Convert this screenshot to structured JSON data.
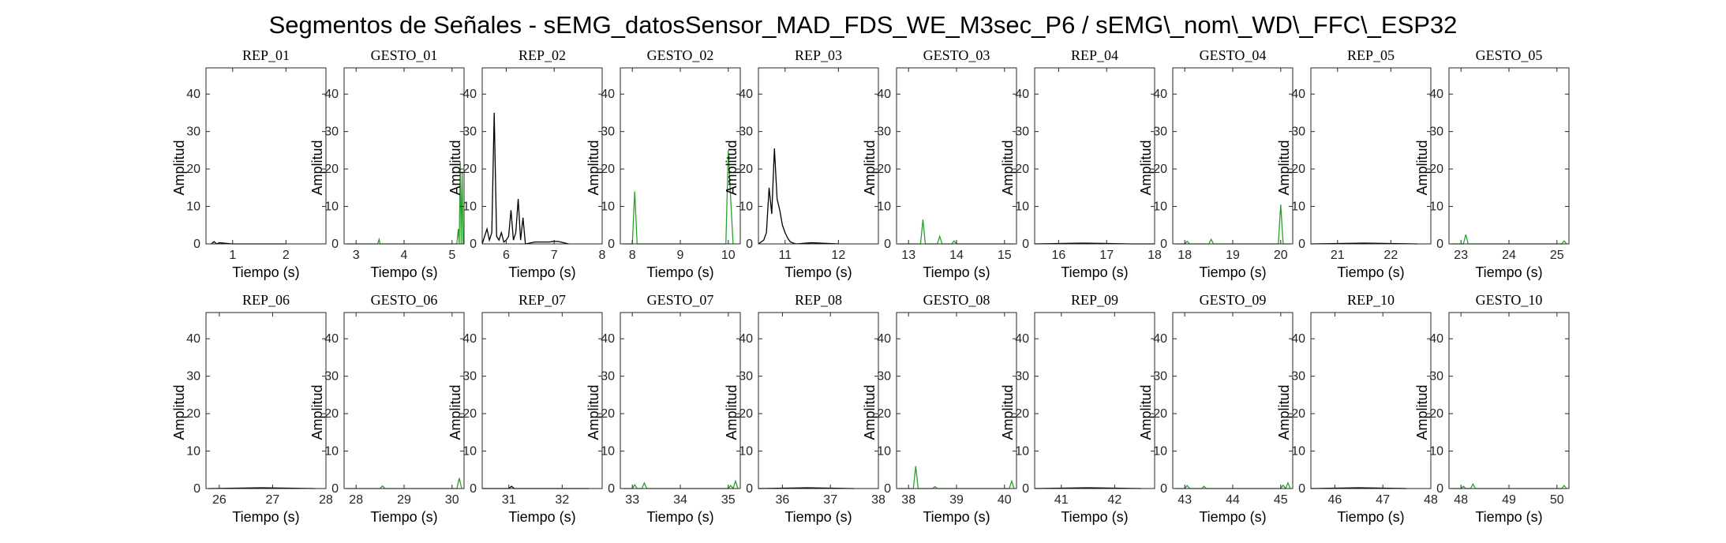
{
  "figure_title": "Segmentos de Señales - sEMG_datosSensor_MAD_FDS_WE_M3sec_P6 / sEMG\\_nom\\_WD\\_FFC\\_ESP32",
  "colors": {
    "rep": "#000000",
    "gesto": "#2ca02c",
    "axis": "#262626"
  },
  "chart_data": [
    {
      "type": "line",
      "title": "REP_01",
      "xlabel": "Tiempo (s)",
      "ylabel": "Amplitud",
      "xlim": [
        0.5,
        2.75
      ],
      "ylim": [
        0,
        47
      ],
      "xticks": [
        1,
        2
      ],
      "yticks": [
        0,
        10,
        20,
        30,
        40
      ],
      "color": "rep",
      "x": [
        0.6,
        0.65,
        0.7,
        0.75,
        1.0,
        2.0
      ],
      "y": [
        0,
        0.6,
        0,
        0.3,
        0,
        0
      ]
    },
    {
      "type": "line",
      "title": "GESTO_01",
      "xlabel": "Tiempo (s)",
      "ylabel": "Amplitud",
      "xlim": [
        2.75,
        5.25
      ],
      "ylim": [
        0,
        47
      ],
      "xticks": [
        3,
        4,
        5
      ],
      "yticks": [
        0,
        10,
        20,
        30,
        40
      ],
      "color": "gesto",
      "x": [
        2.8,
        3.45,
        3.48,
        3.5,
        4.2,
        5.1,
        5.13,
        5.15,
        5.17,
        5.19,
        5.21,
        5.23
      ],
      "y": [
        0,
        0,
        1.2,
        0,
        0,
        0,
        4,
        0,
        22,
        0,
        19,
        0
      ]
    },
    {
      "type": "line",
      "title": "REP_02",
      "xlabel": "Tiempo (s)",
      "ylabel": "Amplitud",
      "xlim": [
        5.5,
        8.0
      ],
      "ylim": [
        0,
        47
      ],
      "xticks": [
        6,
        7,
        8
      ],
      "yticks": [
        0,
        10,
        20,
        30,
        40
      ],
      "color": "rep",
      "x": [
        5.5,
        5.55,
        5.6,
        5.65,
        5.7,
        5.75,
        5.8,
        5.85,
        5.9,
        5.95,
        6.0,
        6.05,
        6.1,
        6.15,
        6.2,
        6.25,
        6.3,
        6.35,
        6.4,
        6.6,
        6.9,
        7.0,
        7.1,
        7.3
      ],
      "y": [
        0,
        2,
        4,
        1,
        3,
        35,
        2,
        1,
        3,
        0.5,
        1,
        2,
        9,
        1,
        3,
        12,
        1,
        7,
        0,
        0.5,
        0.5,
        0.7,
        0.6,
        0
      ]
    },
    {
      "type": "line",
      "title": "GESTO_02",
      "xlabel": "Tiempo (s)",
      "ylabel": "Amplitud",
      "xlim": [
        7.75,
        10.25
      ],
      "ylim": [
        0,
        47
      ],
      "xticks": [
        8,
        9,
        10
      ],
      "yticks": [
        0,
        10,
        20,
        30,
        40
      ],
      "color": "gesto",
      "x": [
        7.8,
        8.0,
        8.05,
        8.1,
        9.0,
        9.95,
        10.0,
        10.05,
        10.1
      ],
      "y": [
        0,
        0,
        14,
        0,
        0,
        0,
        25,
        12,
        0
      ]
    },
    {
      "type": "line",
      "title": "REP_03",
      "xlabel": "Tiempo (s)",
      "ylabel": "Amplitud",
      "xlim": [
        10.5,
        12.75
      ],
      "ylim": [
        0,
        47
      ],
      "xticks": [
        11,
        12
      ],
      "yticks": [
        0,
        10,
        20,
        30,
        40
      ],
      "color": "rep",
      "x": [
        10.5,
        10.55,
        10.6,
        10.65,
        10.7,
        10.75,
        10.8,
        10.85,
        10.9,
        10.95,
        11.0,
        11.05,
        11.1,
        11.2,
        11.5,
        12.0
      ],
      "y": [
        0,
        0.5,
        1,
        3,
        15,
        8,
        25.5,
        12,
        9,
        5,
        3,
        1.5,
        0.5,
        0,
        0.3,
        0
      ]
    },
    {
      "type": "line",
      "title": "GESTO_03",
      "xlabel": "Tiempo (s)",
      "ylabel": "Amplitud",
      "xlim": [
        12.75,
        15.25
      ],
      "ylim": [
        0,
        47
      ],
      "xticks": [
        13,
        14,
        15
      ],
      "yticks": [
        0,
        10,
        20,
        30,
        40
      ],
      "color": "gesto",
      "x": [
        12.8,
        13.25,
        13.3,
        13.35,
        13.6,
        13.65,
        13.7,
        13.9,
        13.95,
        14.0,
        15.2
      ],
      "y": [
        0,
        0,
        6.5,
        0,
        0,
        2,
        0,
        0,
        0.8,
        0,
        0
      ]
    },
    {
      "type": "line",
      "title": "REP_04",
      "xlabel": "Tiempo (s)",
      "ylabel": "Amplitud",
      "xlim": [
        15.5,
        18.0
      ],
      "ylim": [
        0,
        47
      ],
      "xticks": [
        16,
        17,
        18
      ],
      "yticks": [
        0,
        10,
        20,
        30,
        40
      ],
      "color": "rep",
      "x": [
        15.5,
        16.5,
        17.5,
        18.0
      ],
      "y": [
        0,
        0.2,
        0,
        0
      ]
    },
    {
      "type": "line",
      "title": "GESTO_04",
      "xlabel": "Tiempo (s)",
      "ylabel": "Amplitud",
      "xlim": [
        17.75,
        20.25
      ],
      "ylim": [
        0,
        47
      ],
      "xticks": [
        18,
        19,
        20
      ],
      "yticks": [
        0,
        10,
        20,
        30,
        40
      ],
      "color": "gesto",
      "x": [
        17.8,
        18.0,
        18.05,
        18.1,
        18.5,
        18.55,
        18.6,
        19.0,
        19.95,
        20.0,
        20.05,
        20.2
      ],
      "y": [
        0,
        0,
        0.7,
        0,
        0,
        1.2,
        0,
        0,
        0,
        10.5,
        0,
        0
      ]
    },
    {
      "type": "line",
      "title": "REP_05",
      "xlabel": "Tiempo (s)",
      "ylabel": "Amplitud",
      "xlim": [
        20.5,
        22.75
      ],
      "ylim": [
        0,
        47
      ],
      "xticks": [
        21,
        22
      ],
      "yticks": [
        0,
        10,
        20,
        30,
        40
      ],
      "color": "rep",
      "x": [
        20.5,
        21.5,
        22.5
      ],
      "y": [
        0,
        0.2,
        0
      ]
    },
    {
      "type": "line",
      "title": "GESTO_05",
      "xlabel": "Tiempo (s)",
      "ylabel": "Amplitud",
      "xlim": [
        22.75,
        25.25
      ],
      "ylim": [
        0,
        47
      ],
      "xticks": [
        23,
        24,
        25
      ],
      "yticks": [
        0,
        10,
        20,
        30,
        40
      ],
      "color": "gesto",
      "x": [
        22.8,
        23.05,
        23.1,
        23.15,
        24.0,
        25.1,
        25.15,
        25.2
      ],
      "y": [
        0,
        0,
        2.5,
        0,
        0,
        0,
        0.8,
        0
      ]
    },
    {
      "type": "line",
      "title": "REP_06",
      "xlabel": "Tiempo (s)",
      "ylabel": "Amplitud",
      "xlim": [
        25.75,
        28.0
      ],
      "ylim": [
        0,
        47
      ],
      "xticks": [
        26,
        27,
        28
      ],
      "yticks": [
        0,
        10,
        20,
        30,
        40
      ],
      "color": "rep",
      "x": [
        25.8,
        26.8,
        27.8
      ],
      "y": [
        0,
        0.2,
        0
      ]
    },
    {
      "type": "line",
      "title": "GESTO_06",
      "xlabel": "Tiempo (s)",
      "ylabel": "Amplitud",
      "xlim": [
        27.75,
        30.25
      ],
      "ylim": [
        0,
        47
      ],
      "xticks": [
        28,
        29,
        30
      ],
      "yticks": [
        0,
        10,
        20,
        30,
        40
      ],
      "color": "gesto",
      "x": [
        27.8,
        28.5,
        28.55,
        28.6,
        29.5,
        30.1,
        30.15,
        30.2
      ],
      "y": [
        0,
        0,
        0.7,
        0,
        0,
        0,
        2.8,
        0
      ]
    },
    {
      "type": "line",
      "title": "REP_07",
      "xlabel": "Tiempo (s)",
      "ylabel": "Amplitud",
      "xlim": [
        30.5,
        32.75
      ],
      "ylim": [
        0,
        47
      ],
      "xticks": [
        31,
        32
      ],
      "yticks": [
        0,
        10,
        20,
        30,
        40
      ],
      "color": "rep",
      "x": [
        30.5,
        31.0,
        31.05,
        31.1,
        32.5
      ],
      "y": [
        0,
        0,
        0.6,
        0,
        0
      ]
    },
    {
      "type": "line",
      "title": "GESTO_07",
      "xlabel": "Tiempo (s)",
      "ylabel": "Amplitud",
      "xlim": [
        32.75,
        35.25
      ],
      "ylim": [
        0,
        47
      ],
      "xticks": [
        33,
        34,
        35
      ],
      "yticks": [
        0,
        10,
        20,
        30,
        40
      ],
      "color": "gesto",
      "x": [
        32.8,
        33.0,
        33.05,
        33.1,
        33.2,
        33.25,
        33.3,
        35.0,
        35.05,
        35.1,
        35.15,
        35.2
      ],
      "y": [
        0,
        0,
        1,
        0,
        0,
        1.5,
        0,
        0,
        0.8,
        0,
        2,
        0
      ]
    },
    {
      "type": "line",
      "title": "REP_08",
      "xlabel": "Tiempo (s)",
      "ylabel": "Amplitud",
      "xlim": [
        35.5,
        38.0
      ],
      "ylim": [
        0,
        47
      ],
      "xticks": [
        36,
        37,
        38
      ],
      "yticks": [
        0,
        10,
        20,
        30,
        40
      ],
      "color": "rep",
      "x": [
        35.5,
        36.5,
        37.5
      ],
      "y": [
        0,
        0.2,
        0
      ]
    },
    {
      "type": "line",
      "title": "GESTO_08",
      "xlabel": "Tiempo (s)",
      "ylabel": "Amplitud",
      "xlim": [
        37.75,
        40.25
      ],
      "ylim": [
        0,
        47
      ],
      "xticks": [
        38,
        39,
        40
      ],
      "yticks": [
        0,
        10,
        20,
        30,
        40
      ],
      "color": "gesto",
      "x": [
        37.8,
        38.1,
        38.15,
        38.2,
        38.5,
        38.55,
        38.6,
        40.1,
        40.15,
        40.2
      ],
      "y": [
        0,
        0,
        6,
        0,
        0,
        0.5,
        0,
        0,
        2,
        0
      ]
    },
    {
      "type": "line",
      "title": "REP_09",
      "xlabel": "Tiempo (s)",
      "ylabel": "Amplitud",
      "xlim": [
        40.5,
        42.75
      ],
      "ylim": [
        0,
        47
      ],
      "xticks": [
        41,
        42
      ],
      "yticks": [
        0,
        10,
        20,
        30,
        40
      ],
      "color": "rep",
      "x": [
        40.5,
        41.5,
        42.5
      ],
      "y": [
        0,
        0.2,
        0
      ]
    },
    {
      "type": "line",
      "title": "GESTO_09",
      "xlabel": "Tiempo (s)",
      "ylabel": "Amplitud",
      "xlim": [
        42.75,
        45.25
      ],
      "ylim": [
        0,
        47
      ],
      "xticks": [
        43,
        44,
        45
      ],
      "yticks": [
        0,
        10,
        20,
        30,
        40
      ],
      "color": "gesto",
      "x": [
        42.8,
        43.0,
        43.05,
        43.1,
        43.35,
        43.4,
        43.45,
        45.0,
        45.05,
        45.1,
        45.15,
        45.2
      ],
      "y": [
        0,
        0,
        0.8,
        0,
        0,
        0.6,
        0,
        0,
        0.9,
        0,
        1.5,
        0
      ]
    },
    {
      "type": "line",
      "title": "REP_10",
      "xlabel": "Tiempo (s)",
      "ylabel": "Amplitud",
      "xlim": [
        45.5,
        48.0
      ],
      "ylim": [
        0,
        47
      ],
      "xticks": [
        46,
        47,
        48
      ],
      "yticks": [
        0,
        10,
        20,
        30,
        40
      ],
      "color": "rep",
      "x": [
        45.5,
        46.5,
        47.5
      ],
      "y": [
        0,
        0.2,
        0
      ]
    },
    {
      "type": "line",
      "title": "GESTO_10",
      "xlabel": "Tiempo (s)",
      "ylabel": "Amplitud",
      "xlim": [
        47.75,
        50.25
      ],
      "ylim": [
        0,
        47
      ],
      "xticks": [
        48,
        49,
        50
      ],
      "yticks": [
        0,
        10,
        20,
        30,
        40
      ],
      "color": "gesto",
      "x": [
        47.8,
        48.0,
        48.05,
        48.1,
        48.2,
        48.25,
        48.3,
        50.1,
        50.15,
        50.2
      ],
      "y": [
        0,
        0,
        0.6,
        0,
        0,
        1.2,
        0,
        0,
        0.8,
        0
      ]
    }
  ]
}
